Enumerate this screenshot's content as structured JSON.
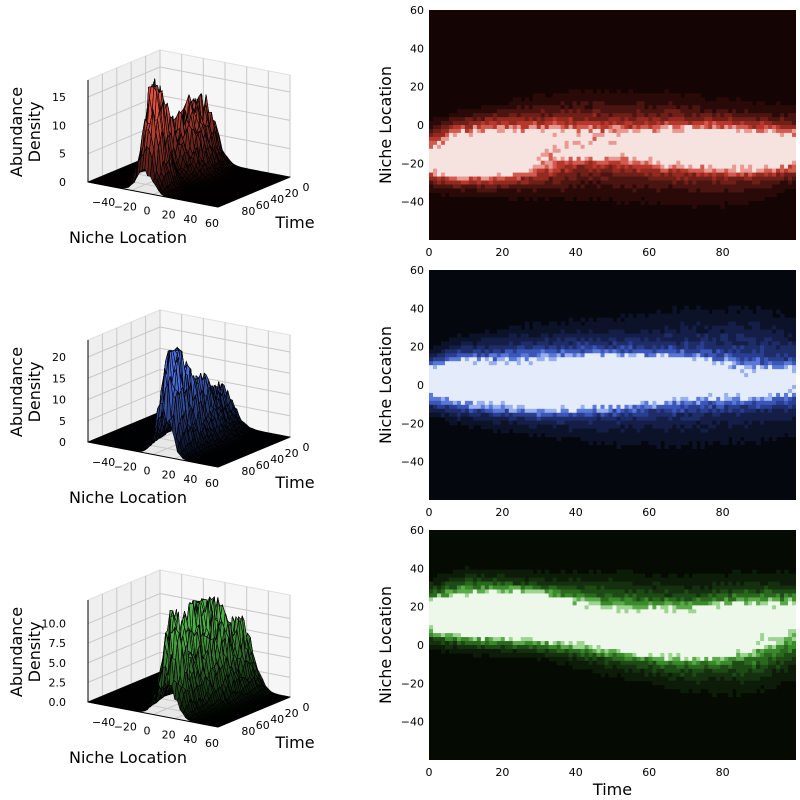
{
  "chart_data": [
    {
      "type": "surface",
      "xlabel": "Niche Location",
      "ylabel": "Time",
      "zlabel_lines": [
        "Abundance",
        "Density"
      ],
      "xticks": [
        "−40",
        "−20",
        "0",
        "20",
        "40",
        "60"
      ],
      "yticks": [
        "0",
        "20",
        "40",
        "60",
        "80"
      ],
      "zticks": [
        "0",
        "5",
        "10",
        "15"
      ],
      "xlim": [
        -60,
        60
      ],
      "ylim": [
        0,
        100
      ],
      "zlim": [
        0,
        18
      ],
      "peaks": [
        {
          "x": -15,
          "t": 8,
          "z": 9,
          "w": 9,
          "wt": 10
        },
        {
          "x": -10,
          "t": 35,
          "z": 11,
          "w": 10,
          "wt": 14
        },
        {
          "x": -20,
          "t": 65,
          "z": 15,
          "w": 7,
          "wt": 10
        },
        {
          "x": -8,
          "t": 85,
          "z": 18,
          "w": 7,
          "wt": 9
        }
      ],
      "color": "#e05040"
    },
    {
      "type": "contour",
      "xlabel": "",
      "ylabel": "Niche Location",
      "xticks": [
        "0",
        "20",
        "40",
        "60",
        "80"
      ],
      "yticks": [
        "60",
        "40",
        "20",
        "0",
        "−20",
        "−40"
      ],
      "xlim": [
        0,
        100
      ],
      "ylim": [
        -60,
        60
      ],
      "bg": "#140404",
      "colors": [
        "#2a0a08",
        "#4a1510",
        "#6e2018",
        "#922a20",
        "#b8372c",
        "#d35a4e",
        "#e89a92",
        "#f6e2df"
      ],
      "path": [
        {
          "t": 0,
          "y": -18,
          "w": 8,
          "a": 0.6
        },
        {
          "t": 8,
          "y": -15,
          "w": 10,
          "a": 1.0
        },
        {
          "t": 25,
          "y": -12,
          "w": 13,
          "a": 0.85
        },
        {
          "t": 45,
          "y": -10,
          "w": 16,
          "a": 0.6
        },
        {
          "t": 65,
          "y": -12,
          "w": 17,
          "a": 0.55
        },
        {
          "t": 85,
          "y": -15,
          "w": 15,
          "a": 0.6
        },
        {
          "t": 100,
          "y": -12,
          "w": 13,
          "a": 0.45
        }
      ]
    },
    {
      "type": "surface",
      "xlabel": "Niche Location",
      "ylabel": "Time",
      "zlabel_lines": [
        "Abundance",
        "Density"
      ],
      "xticks": [
        "−40",
        "−20",
        "0",
        "20",
        "40",
        "60"
      ],
      "yticks": [
        "0",
        "20",
        "40",
        "60",
        "80"
      ],
      "zticks": [
        "0",
        "5",
        "10",
        "15",
        "20"
      ],
      "xlim": [
        -60,
        60
      ],
      "ylim": [
        0,
        100
      ],
      "zlim": [
        0,
        24
      ],
      "peaks": [
        {
          "x": 0,
          "t": 8,
          "z": 8,
          "w": 10,
          "wt": 10
        },
        {
          "x": 5,
          "t": 40,
          "z": 12,
          "w": 11,
          "wt": 15
        },
        {
          "x": 8,
          "t": 70,
          "z": 16,
          "w": 9,
          "wt": 12
        },
        {
          "x": 10,
          "t": 90,
          "z": 22,
          "w": 7,
          "wt": 8
        }
      ],
      "color": "#4a6ee0"
    },
    {
      "type": "contour",
      "xlabel": "",
      "ylabel": "Niche Location",
      "xticks": [
        "0",
        "20",
        "40",
        "60",
        "80"
      ],
      "yticks": [
        "60",
        "40",
        "20",
        "0",
        "−20",
        "−40"
      ],
      "xlim": [
        0,
        100
      ],
      "ylim": [
        -60,
        60
      ],
      "bg": "#05070f",
      "colors": [
        "#0c1228",
        "#141e46",
        "#1e2c68",
        "#2a3e90",
        "#3a56b8",
        "#5a78d8",
        "#98b0ee",
        "#e4ecfb"
      ],
      "path": [
        {
          "t": 0,
          "y": 2,
          "w": 9,
          "a": 0.6
        },
        {
          "t": 8,
          "y": 3,
          "w": 11,
          "a": 1.0
        },
        {
          "t": 30,
          "y": 3,
          "w": 15,
          "a": 0.8
        },
        {
          "t": 50,
          "y": 2,
          "w": 18,
          "a": 0.65
        },
        {
          "t": 70,
          "y": 4,
          "w": 20,
          "a": 0.6
        },
        {
          "t": 90,
          "y": 6,
          "w": 20,
          "a": 0.55
        },
        {
          "t": 100,
          "y": 5,
          "w": 18,
          "a": 0.5
        }
      ]
    },
    {
      "type": "surface",
      "xlabel": "Niche Location",
      "ylabel": "Time",
      "zlabel_lines": [
        "Abundance",
        "Density"
      ],
      "xticks": [
        "−40",
        "−20",
        "0",
        "20",
        "40",
        "60"
      ],
      "yticks": [
        "0",
        "20",
        "40",
        "60",
        "80"
      ],
      "zticks": [
        "0.0",
        "2.5",
        "5.0",
        "7.5",
        "10.0"
      ],
      "xlim": [
        -60,
        60
      ],
      "ylim": [
        0,
        100
      ],
      "zlim": [
        0,
        13
      ],
      "peaks": [
        {
          "x": 20,
          "t": 8,
          "z": 7,
          "w": 9,
          "wt": 10
        },
        {
          "x": 15,
          "t": 35,
          "z": 10,
          "w": 10,
          "wt": 13
        },
        {
          "x": 10,
          "t": 60,
          "z": 11,
          "w": 10,
          "wt": 12
        },
        {
          "x": 12,
          "t": 88,
          "z": 12,
          "w": 8,
          "wt": 9
        }
      ],
      "color": "#50b048"
    },
    {
      "type": "contour",
      "xlabel": "Time",
      "ylabel": "Niche Location",
      "xticks": [
        "0",
        "20",
        "40",
        "60",
        "80"
      ],
      "yticks": [
        "60",
        "40",
        "20",
        "0",
        "−20",
        "−40"
      ],
      "xlim": [
        0,
        100
      ],
      "ylim": [
        -60,
        60
      ],
      "bg": "#050a02",
      "colors": [
        "#0c1c08",
        "#14300e",
        "#1e4a16",
        "#2a681e",
        "#3a8a2c",
        "#5aaa4a",
        "#9ed492",
        "#eef8ea"
      ],
      "path": [
        {
          "t": 0,
          "y": 20,
          "w": 8,
          "a": 0.6
        },
        {
          "t": 10,
          "y": 20,
          "w": 10,
          "a": 1.0
        },
        {
          "t": 30,
          "y": 17,
          "w": 11,
          "a": 0.8
        },
        {
          "t": 50,
          "y": 12,
          "w": 14,
          "a": 0.75
        },
        {
          "t": 70,
          "y": 6,
          "w": 16,
          "a": 0.7
        },
        {
          "t": 88,
          "y": 6,
          "w": 17,
          "a": 0.7
        },
        {
          "t": 100,
          "y": 10,
          "w": 15,
          "a": 0.6
        }
      ]
    }
  ]
}
